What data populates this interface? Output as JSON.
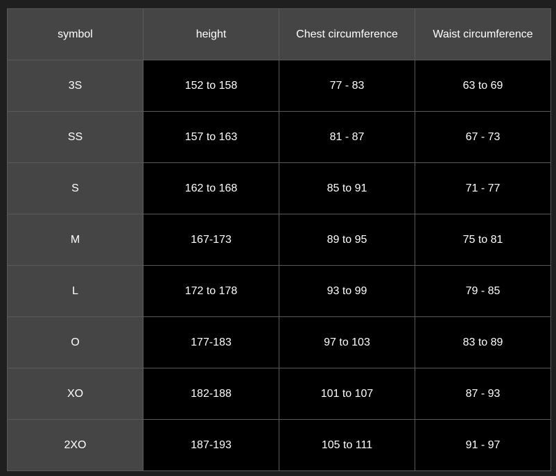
{
  "table": {
    "header": [
      "symbol",
      "height",
      "Chest circumference",
      "Waist circumference"
    ],
    "rows": [
      [
        "3S",
        "152 to 158",
        "77 - 83",
        "63 to 69"
      ],
      [
        "SS",
        "157 to 163",
        "81 - 87",
        "67 - 73"
      ],
      [
        "S",
        "162 to 168",
        "85 to 91",
        "71 - 77"
      ],
      [
        "M",
        "167-173",
        "89 to 95",
        "75 to 81"
      ],
      [
        "L",
        "172 to 178",
        "93 to 99",
        "79 - 85"
      ],
      [
        "O",
        "177-183",
        "97 to 103",
        "83 to 89"
      ],
      [
        "XO",
        "182-188",
        "101 to 107",
        "87 - 93"
      ],
      [
        "2XO",
        "187-193",
        "105 to 111",
        "91 - 97"
      ]
    ]
  }
}
